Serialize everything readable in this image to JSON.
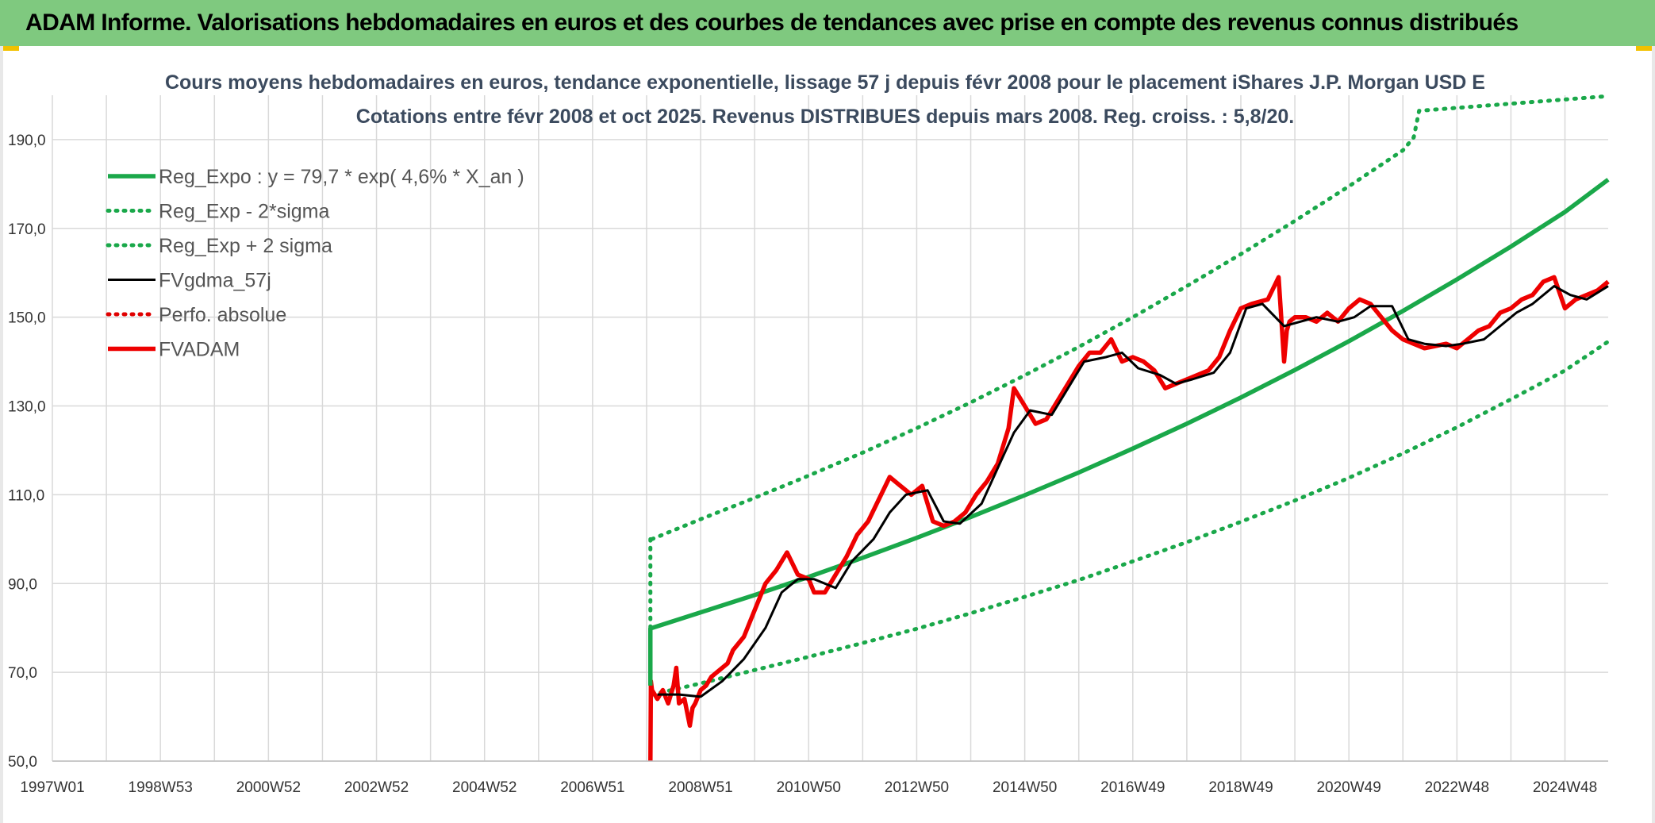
{
  "banner": {
    "title": "ADAM Informe. Valorisations hebdomadaires en euros et des courbes de tendances avec prise en compte des revenus connus distribués"
  },
  "colors": {
    "banner_bg": "#7fc97f",
    "trend": "#1aa84a",
    "band": "#1aa84a",
    "smooth": "#000000",
    "perf": "#e00000",
    "price": "#ee0000",
    "grid": "#d9d9d9"
  },
  "chart_data": {
    "type": "line",
    "title": "Cours moyens hebdomadaires en euros, tendance exponentielle, lissage 57 j depuis févr 2008 pour le placement iShares J.P. Morgan USD E",
    "subtitle": "Cotations entre févr 2008 et oct 2025. Revenus DISTRIBUES depuis mars 2008. Reg. croiss. : 5,8/20.",
    "ylim": [
      50,
      200
    ],
    "yticks": [
      "190,0",
      "170,0",
      "150,0",
      "130,0",
      "110,0",
      "90,0",
      "70,0",
      "50,0"
    ],
    "ytick_values": [
      190,
      170,
      150,
      130,
      110,
      90,
      70,
      50
    ],
    "xlim": [
      1997.0,
      2025.8
    ],
    "xticks": [
      "1997W01",
      "1998W53",
      "2000W52",
      "2002W52",
      "2004W52",
      "2006W51",
      "2008W51",
      "2010W50",
      "2012W50",
      "2014W50",
      "2016W49",
      "2018W49",
      "2020W49",
      "2022W48",
      "2024W48"
    ],
    "xtick_values": [
      1997.0,
      1999.0,
      2001.0,
      2003.0,
      2005.0,
      2007.0,
      2009.0,
      2011.0,
      2013.0,
      2015.0,
      2017.0,
      2019.0,
      2021.0,
      2023.0,
      2025.0
    ],
    "grid": true,
    "legend_position": "top-left",
    "series": [
      {
        "name": "Reg_Expo : y = 79,7 * exp( 4,6% *  X_an )",
        "style": "solid-thick",
        "color": "#1aa84a",
        "x": [
          2008.1,
          2009,
          2010,
          2011,
          2012,
          2013,
          2014,
          2015,
          2016,
          2017,
          2018,
          2019,
          2020,
          2021,
          2022,
          2023,
          2024,
          2025,
          2025.8
        ],
        "y": [
          80,
          83.5,
          87.4,
          91.5,
          95.8,
          100.3,
          105.0,
          109.9,
          115.0,
          120.4,
          126.0,
          131.9,
          138.1,
          144.6,
          151.4,
          158.5,
          165.9,
          173.7,
          181.0
        ]
      },
      {
        "name": "Reg_Exp - 2*sigma",
        "style": "dotted",
        "color": "#1aa84a",
        "x": [
          2008.1,
          2009,
          2010,
          2011,
          2012,
          2013,
          2014,
          2015,
          2016,
          2017,
          2018,
          2019,
          2020,
          2021,
          2022,
          2023,
          2024,
          2025,
          2025.8
        ],
        "y": [
          65,
          67.5,
          70.5,
          73.5,
          76.6,
          79.8,
          83.3,
          87.0,
          90.8,
          95.0,
          99.3,
          103.9,
          108.7,
          113.8,
          119.3,
          125.2,
          131.5,
          138.0,
          144.5
        ]
      },
      {
        "name": "Reg_Exp + 2 sigma",
        "style": "dotted",
        "color": "#1aa84a",
        "x": [
          2008.1,
          2009,
          2010,
          2011,
          2012,
          2013,
          2014,
          2015,
          2016,
          2017,
          2018,
          2019,
          2020,
          2021,
          2022,
          2022.2,
          2022.3,
          2025.8
        ],
        "y": [
          100,
          104.5,
          109.3,
          114.3,
          119.5,
          125.0,
          130.8,
          136.9,
          143.3,
          150.0,
          157.0,
          164.2,
          171.7,
          179.5,
          187.6,
          190.5,
          196.5,
          199.8
        ]
      },
      {
        "name": "FVgdma_57j",
        "style": "solid",
        "color": "#000000",
        "x": [
          2008.2,
          2008.6,
          2009.0,
          2009.4,
          2009.8,
          2010.2,
          2010.5,
          2010.8,
          2011.1,
          2011.5,
          2011.8,
          2012.2,
          2012.5,
          2012.8,
          2013.2,
          2013.5,
          2013.8,
          2014.2,
          2014.5,
          2014.8,
          2015.1,
          2015.5,
          2015.8,
          2016.1,
          2016.5,
          2016.8,
          2017.1,
          2017.5,
          2017.8,
          2018.1,
          2018.5,
          2018.8,
          2019.1,
          2019.4,
          2019.8,
          2020.1,
          2020.4,
          2020.8,
          2021.1,
          2021.4,
          2021.8,
          2022.1,
          2022.4,
          2022.8,
          2023.1,
          2023.5,
          2023.8,
          2024.1,
          2024.4,
          2024.8,
          2025.1,
          2025.4,
          2025.8
        ],
        "y": [
          65,
          65,
          64.5,
          68,
          73,
          80,
          88,
          91,
          91,
          89,
          95,
          100,
          106,
          110,
          111,
          104,
          103.5,
          108,
          116,
          124,
          129,
          128,
          134,
          140,
          141,
          142,
          138.5,
          137,
          135,
          136,
          137.5,
          142,
          152,
          153,
          148,
          149,
          150,
          149,
          150,
          152.5,
          152.5,
          145,
          144,
          143.5,
          144,
          145,
          148,
          151,
          153,
          157,
          155,
          154,
          157
        ]
      },
      {
        "name": "Perfo. absolue",
        "style": "dotted",
        "color": "#e00000",
        "x": [],
        "y": []
      },
      {
        "name": "FVADAM",
        "style": "solid-thick",
        "color": "#ee0000",
        "x": [
          2008.07,
          2008.08,
          2008.1,
          2008.2,
          2008.3,
          2008.4,
          2008.5,
          2008.55,
          2008.6,
          2008.7,
          2008.8,
          2008.85,
          2008.9,
          2009.0,
          2009.1,
          2009.2,
          2009.3,
          2009.4,
          2009.5,
          2009.6,
          2009.8,
          2010.0,
          2010.2,
          2010.4,
          2010.6,
          2010.8,
          2011.0,
          2011.1,
          2011.3,
          2011.5,
          2011.7,
          2011.9,
          2012.1,
          2012.3,
          2012.5,
          2012.7,
          2012.9,
          2013.1,
          2013.3,
          2013.5,
          2013.7,
          2013.9,
          2014.1,
          2014.3,
          2014.5,
          2014.7,
          2014.8,
          2015.0,
          2015.2,
          2015.4,
          2015.6,
          2015.8,
          2016.0,
          2016.2,
          2016.4,
          2016.6,
          2016.8,
          2017.0,
          2017.2,
          2017.4,
          2017.6,
          2017.8,
          2018.0,
          2018.2,
          2018.4,
          2018.6,
          2018.8,
          2019.0,
          2019.2,
          2019.5,
          2019.7,
          2019.8,
          2019.85,
          2019.9,
          2020.0,
          2020.2,
          2020.4,
          2020.6,
          2020.8,
          2021.0,
          2021.2,
          2021.4,
          2021.6,
          2021.8,
          2022.0,
          2022.2,
          2022.4,
          2022.6,
          2022.8,
          2023.0,
          2023.2,
          2023.4,
          2023.6,
          2023.8,
          2024.0,
          2024.2,
          2024.4,
          2024.6,
          2024.8,
          2025.0,
          2025.2,
          2025.4,
          2025.6,
          2025.8
        ],
        "y": [
          50,
          68,
          66,
          64,
          66,
          63,
          67,
          71,
          63,
          64,
          58,
          62,
          63,
          66,
          67,
          69,
          70,
          71,
          72,
          75,
          78,
          84,
          90,
          93,
          97,
          92,
          91,
          88,
          88,
          92,
          96,
          101,
          104,
          109,
          114,
          112,
          110,
          112,
          104,
          103,
          104,
          106,
          110,
          113,
          117,
          125,
          134,
          130,
          126,
          127,
          131,
          135,
          139,
          142,
          142,
          145,
          140,
          141,
          140,
          138,
          134,
          135,
          136,
          137,
          138,
          141,
          147,
          152,
          153,
          154,
          159,
          140,
          147,
          149,
          150,
          150,
          149,
          151,
          149,
          152,
          154,
          153,
          150,
          147,
          145,
          144,
          143,
          143.5,
          144,
          143,
          145,
          147,
          148,
          151,
          152,
          154,
          155,
          158,
          159,
          152,
          154,
          155,
          156,
          158
        ]
      }
    ]
  }
}
